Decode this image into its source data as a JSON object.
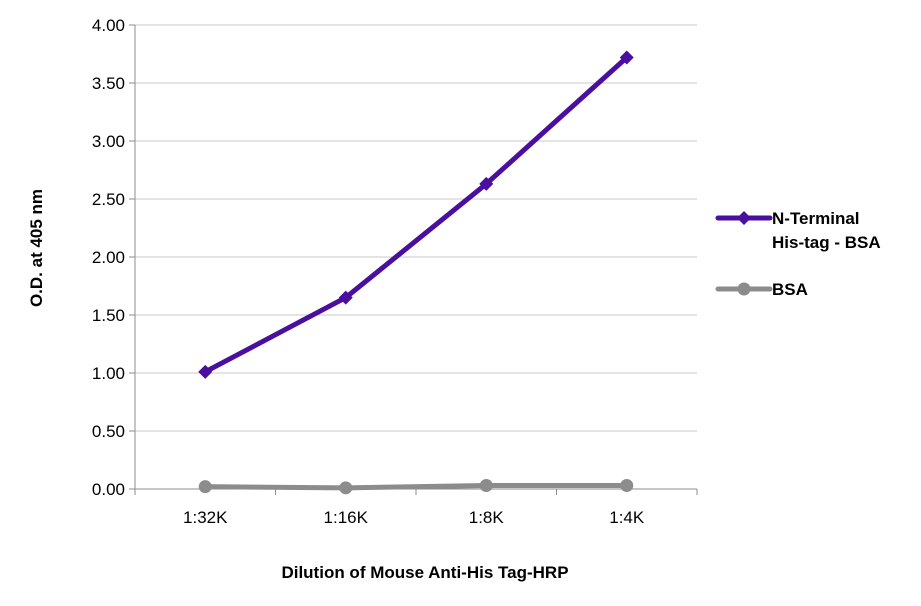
{
  "chart_data": {
    "type": "line",
    "title": "",
    "xlabel": "Dilution of Mouse Anti-His Tag-HRP",
    "ylabel": "O.D. at 405 nm",
    "categories": [
      "1:32K",
      "1:16K",
      "1:8K",
      "1:4K"
    ],
    "ylim": [
      0,
      4
    ],
    "yticks": [
      "0.00",
      "0.50",
      "1.00",
      "1.50",
      "2.00",
      "2.50",
      "3.00",
      "3.50",
      "4.00"
    ],
    "grid": "horizontal",
    "legend_position": "right",
    "series": [
      {
        "name": "N-Terminal His-tag - BSA",
        "name_lines": [
          "N-Terminal",
          "His-tag - BSA"
        ],
        "values": [
          1.01,
          1.65,
          2.63,
          3.72
        ],
        "color": "#4b0fa0",
        "marker": "diamond"
      },
      {
        "name": "BSA",
        "name_lines": [
          "BSA"
        ],
        "values": [
          0.02,
          0.01,
          0.03,
          0.03
        ],
        "color": "#8c8c8c",
        "marker": "circle"
      }
    ]
  }
}
